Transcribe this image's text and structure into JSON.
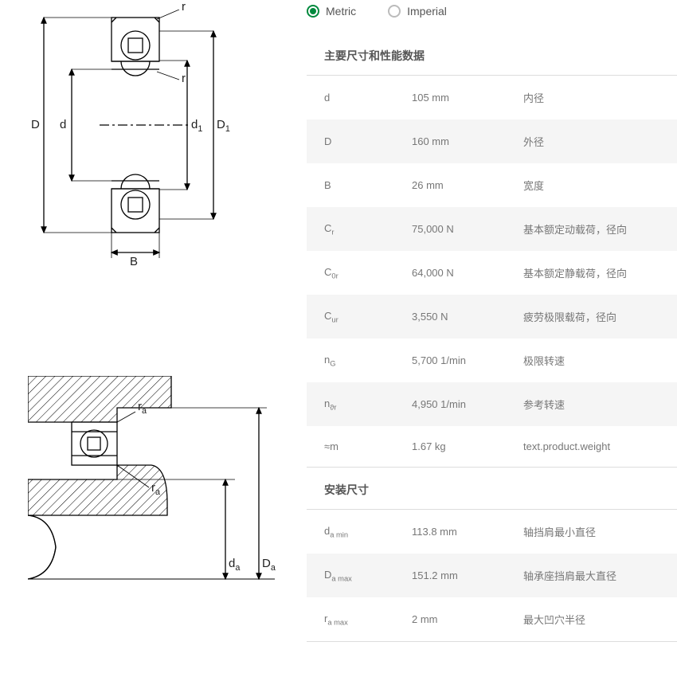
{
  "units": {
    "metric": "Metric",
    "imperial": "Imperial",
    "selected": "metric"
  },
  "sections": {
    "main": "主要尺寸和性能数据",
    "install": "安装尺寸"
  },
  "main_rows": [
    {
      "sym": "d",
      "sub": "",
      "val": "105 mm",
      "desc": "内径"
    },
    {
      "sym": "D",
      "sub": "",
      "val": "160 mm",
      "desc": "外径"
    },
    {
      "sym": "B",
      "sub": "",
      "val": "26 mm",
      "desc": "宽度"
    },
    {
      "sym": "C",
      "sub": "r",
      "val": "75,000 N",
      "desc": "基本额定动载荷，径向"
    },
    {
      "sym": "C",
      "sub": "0r",
      "val": "64,000 N",
      "desc": "基本额定静载荷，径向"
    },
    {
      "sym": "C",
      "sub": "ur",
      "val": "3,550 N",
      "desc": "疲劳极限载荷，径向"
    },
    {
      "sym": "n",
      "sub": "G",
      "val": "5,700 1/min",
      "desc": "极限转速"
    },
    {
      "sym": "n",
      "sub": "ϑr",
      "val": "4,950 1/min",
      "desc": "参考转速"
    },
    {
      "sym": "≈m",
      "sub": "",
      "val": "1.67 kg",
      "desc": "text.product.weight"
    }
  ],
  "install_rows": [
    {
      "sym": "d",
      "sub": "a min",
      "val": "113.8 mm",
      "desc": "轴挡肩最小直径"
    },
    {
      "sym": "D",
      "sub": "a max",
      "val": "151.2 mm",
      "desc": "轴承座挡肩最大直径"
    },
    {
      "sym": "r",
      "sub": "a max",
      "val": "2 mm",
      "desc": "最大凹穴半径"
    }
  ],
  "diagram1_labels": {
    "D": "D",
    "d": "d",
    "d1": "d",
    "d1_sub": "1",
    "D1": "D",
    "D1_sub": "1",
    "r_top": "r",
    "r_bot": "r",
    "B": "B"
  },
  "diagram2_labels": {
    "ra_top": "r",
    "ra_top_sub": "a",
    "ra_bot": "r",
    "ra_bot_sub": "a",
    "da": "d",
    "da_sub": "a",
    "Da": "D",
    "Da_sub": "a"
  },
  "colors": {
    "accent": "#00893d",
    "line": "#000000",
    "hatch": "#000000",
    "grid": "#dddddd",
    "row_alt": "#f5f5f5"
  }
}
